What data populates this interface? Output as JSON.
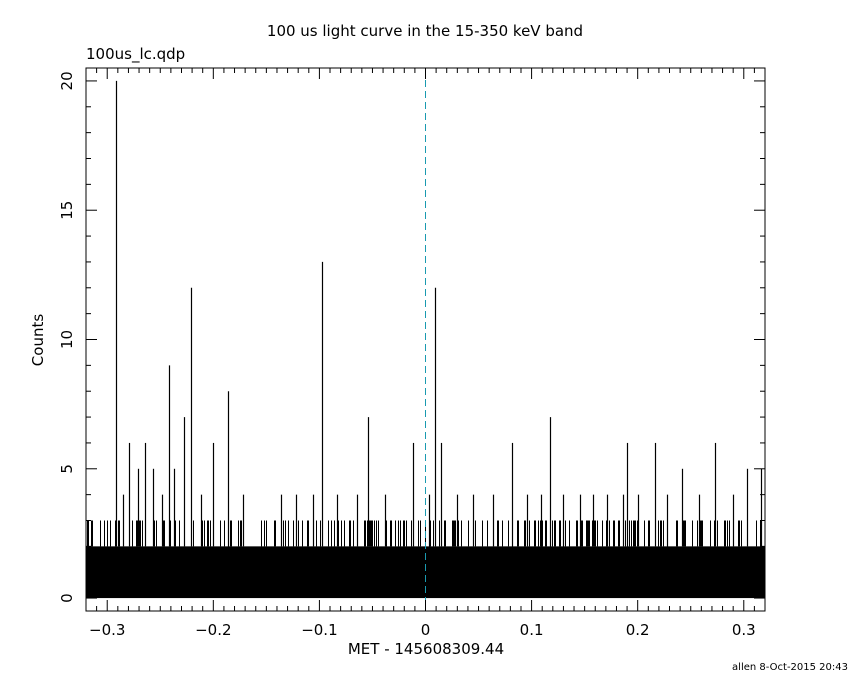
{
  "chart_data": {
    "type": "bar",
    "title": "100 us light curve in the 15-350 keV band",
    "file_label": "100us_lc.qdp",
    "xlabel": "MET - 145608309.44",
    "ylabel": "Counts",
    "xlim": [
      -0.32,
      0.32
    ],
    "ylim": [
      -0.5,
      20.5
    ],
    "x_ticks": [
      -0.3,
      -0.2,
      -0.1,
      0,
      0.1,
      0.2,
      0.3
    ],
    "x_tick_labels": [
      "−0.3",
      "−0.2",
      "−0.1",
      "0",
      "0.1",
      "0.2",
      "0.3"
    ],
    "y_ticks": [
      0,
      5,
      10,
      15,
      20
    ],
    "y_tick_labels": [
      "0",
      "5",
      "10",
      "15",
      "20"
    ],
    "bin_width": 0.0001,
    "baseline_counts": 2,
    "trigger_line": {
      "x": 0,
      "color": "#1a9ab0",
      "style": "dashed"
    },
    "notable_bins": [
      {
        "x": -0.292,
        "y": 20
      },
      {
        "x": -0.285,
        "y": 4
      },
      {
        "x": -0.279,
        "y": 6
      },
      {
        "x": -0.271,
        "y": 5
      },
      {
        "x": -0.264,
        "y": 6
      },
      {
        "x": -0.257,
        "y": 5
      },
      {
        "x": -0.248,
        "y": 4
      },
      {
        "x": -0.242,
        "y": 9
      },
      {
        "x": -0.237,
        "y": 5
      },
      {
        "x": -0.228,
        "y": 7
      },
      {
        "x": -0.221,
        "y": 12
      },
      {
        "x": -0.212,
        "y": 4
      },
      {
        "x": -0.2,
        "y": 6
      },
      {
        "x": -0.186,
        "y": 8
      },
      {
        "x": -0.172,
        "y": 4
      },
      {
        "x": -0.136,
        "y": 4
      },
      {
        "x": -0.122,
        "y": 4
      },
      {
        "x": -0.106,
        "y": 4
      },
      {
        "x": -0.098,
        "y": 13
      },
      {
        "x": -0.083,
        "y": 4
      },
      {
        "x": -0.065,
        "y": 4
      },
      {
        "x": -0.054,
        "y": 7
      },
      {
        "x": -0.038,
        "y": 4
      },
      {
        "x": -0.012,
        "y": 6
      },
      {
        "x": 0.003,
        "y": 4
      },
      {
        "x": 0.009,
        "y": 12
      },
      {
        "x": 0.015,
        "y": 6
      },
      {
        "x": 0.03,
        "y": 4
      },
      {
        "x": 0.045,
        "y": 4
      },
      {
        "x": 0.064,
        "y": 4
      },
      {
        "x": 0.082,
        "y": 6
      },
      {
        "x": 0.096,
        "y": 4
      },
      {
        "x": 0.109,
        "y": 4
      },
      {
        "x": 0.117,
        "y": 7
      },
      {
        "x": 0.13,
        "y": 4
      },
      {
        "x": 0.146,
        "y": 4
      },
      {
        "x": 0.158,
        "y": 4
      },
      {
        "x": 0.171,
        "y": 4
      },
      {
        "x": 0.186,
        "y": 4
      },
      {
        "x": 0.19,
        "y": 6
      },
      {
        "x": 0.2,
        "y": 4
      },
      {
        "x": 0.216,
        "y": 6
      },
      {
        "x": 0.228,
        "y": 4
      },
      {
        "x": 0.242,
        "y": 5
      },
      {
        "x": 0.258,
        "y": 4
      },
      {
        "x": 0.273,
        "y": 6
      },
      {
        "x": 0.29,
        "y": 4
      },
      {
        "x": 0.303,
        "y": 5
      },
      {
        "x": 0.316,
        "y": 5
      }
    ],
    "grid": false
  },
  "footer": "allen  8-Oct-2015 20:43"
}
